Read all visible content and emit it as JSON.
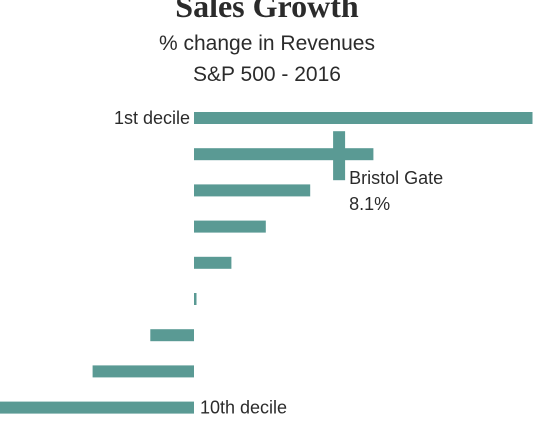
{
  "title": "Sales Growth",
  "subtitle_lines": [
    "% change in Revenues",
    "S&P 500 - 2016"
  ],
  "colors": {
    "bar": "#5a9a94",
    "text": "#2b2b2b",
    "background": "#ffffff"
  },
  "chart_data": {
    "type": "bar",
    "orientation": "horizontal",
    "title": "Sales Growth",
    "subtitle": "% change in Revenues S&P 500 - 2016",
    "categories": [
      "1st decile",
      "",
      "",
      "",
      "",
      "",
      "",
      "",
      "10th decile"
    ],
    "values": [
      43.4,
      23.0,
      14.9,
      9.2,
      4.8,
      0.3,
      -5.6,
      -13.0,
      -25.0
    ],
    "series": [
      {
        "values": [
          43.4,
          23.0,
          14.9,
          9.2,
          4.8,
          0.3,
          -5.6,
          -13.0,
          -25.0
        ]
      }
    ],
    "annotations": [
      {
        "label_lines": [
          "Bristol Gate",
          "8.1%"
        ],
        "value": 8.1
      }
    ],
    "marker_value": 18.6,
    "xlim": [
      -25,
      43.4
    ],
    "grid": false,
    "legend": "none",
    "xlabel": "",
    "ylabel": ""
  }
}
